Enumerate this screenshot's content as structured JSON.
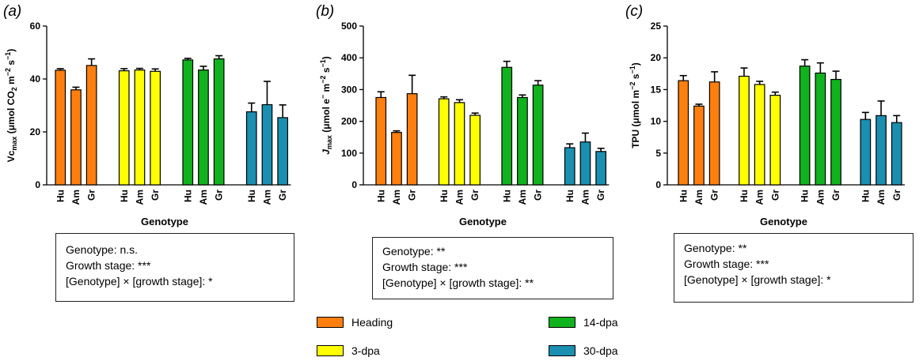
{
  "chart_data": [
    {
      "panel": "(a)",
      "type": "bar",
      "ylabel_main": "Vc",
      "ylabel_sub": "max",
      "ylabel_rest": " (μmol CO",
      "ylabel_sub2": "2",
      "ylabel_rest2": " m",
      "ylabel_sup": "−2",
      "ylabel_rest3": " s",
      "ylabel_sup2": "−1",
      "ylabel_end": ")",
      "ylim": [
        0,
        60
      ],
      "yticks": [
        "0",
        "20",
        "40",
        "60"
      ],
      "xlabel": "Genotype",
      "categories": [
        "Hu",
        "Am",
        "Gr"
      ],
      "groups": [
        {
          "name": "Heading",
          "values": [
            43.3,
            35.9,
            45.1
          ],
          "errors": [
            0.6,
            1.0,
            2.5
          ]
        },
        {
          "name": "3-dpa",
          "values": [
            43.1,
            43.4,
            42.9
          ],
          "errors": [
            0.8,
            0.6,
            0.9
          ]
        },
        {
          "name": "14-dpa",
          "values": [
            47.2,
            43.4,
            47.6
          ],
          "errors": [
            0.6,
            1.4,
            1.2
          ]
        },
        {
          "name": "30-dpa",
          "values": [
            27.6,
            30.3,
            25.4
          ],
          "errors": [
            3.3,
            8.8,
            4.8
          ]
        }
      ],
      "stats": [
        "Genotype: n.s.",
        "Growth stage: ***",
        "[Genotype] × [growth stage]: *"
      ]
    },
    {
      "panel": "(b)",
      "type": "bar",
      "ylabel_main": "J",
      "ylabel_sub": "max",
      "ylabel_rest": " (μmol e",
      "ylabel_sup": "−",
      "ylabel_rest2": " m",
      "ylabel_sup2": "−2",
      "ylabel_rest3": " s",
      "ylabel_sup3": "−1",
      "ylabel_end": ")",
      "ylim": [
        0,
        500
      ],
      "yticks": [
        "0",
        "100",
        "200",
        "300",
        "400",
        "500"
      ],
      "xlabel": "Genotype",
      "categories": [
        "Hu",
        "Am",
        "Gr"
      ],
      "groups": [
        {
          "name": "Heading",
          "values": [
            275,
            165,
            287
          ],
          "errors": [
            18,
            5,
            58
          ]
        },
        {
          "name": "3-dpa",
          "values": [
            271,
            259,
            219
          ],
          "errors": [
            6,
            9,
            7
          ]
        },
        {
          "name": "14-dpa",
          "values": [
            370,
            275,
            314
          ],
          "errors": [
            19,
            8,
            14
          ]
        },
        {
          "name": "30-dpa",
          "values": [
            117,
            135,
            105
          ],
          "errors": [
            12,
            28,
            10
          ]
        }
      ],
      "stats": [
        "Genotype: **",
        "Growth stage: ***",
        "[Genotype] × [growth stage]: **"
      ]
    },
    {
      "panel": "(c)",
      "type": "bar",
      "ylabel_main": "TPU (μmol m",
      "ylabel_sup": "−2",
      "ylabel_rest": " s",
      "ylabel_sup2": "−1",
      "ylabel_end": ")",
      "ylim": [
        0,
        25
      ],
      "yticks": [
        "0",
        "5",
        "10",
        "15",
        "20",
        "25"
      ],
      "xlabel": "Genotype",
      "categories": [
        "Hu",
        "Am",
        "Gr"
      ],
      "groups": [
        {
          "name": "Heading",
          "values": [
            16.4,
            12.4,
            16.2
          ],
          "errors": [
            0.8,
            0.3,
            1.6
          ]
        },
        {
          "name": "3-dpa",
          "values": [
            17.1,
            15.8,
            14.1
          ],
          "errors": [
            1.3,
            0.5,
            0.5
          ]
        },
        {
          "name": "14-dpa",
          "values": [
            18.7,
            17.6,
            16.6
          ],
          "errors": [
            1.0,
            1.6,
            1.3
          ]
        },
        {
          "name": "30-dpa",
          "values": [
            10.3,
            10.9,
            9.8
          ],
          "errors": [
            1.1,
            2.3,
            1.1
          ]
        }
      ],
      "stats": [
        "Genotype: **",
        "Growth stage: ***",
        "[Genotype] × [growth stage]: *"
      ]
    }
  ],
  "legend": [
    {
      "name": "Heading",
      "color": "#FF7F0E"
    },
    {
      "name": "3-dpa",
      "color": "#FFFF00"
    },
    {
      "name": "14-dpa",
      "color": "#10B21E"
    },
    {
      "name": "30-dpa",
      "color": "#1A8FB0"
    }
  ],
  "colors": [
    "#FF7F0E",
    "#FFFF00",
    "#10B21E",
    "#1A8FB0"
  ]
}
